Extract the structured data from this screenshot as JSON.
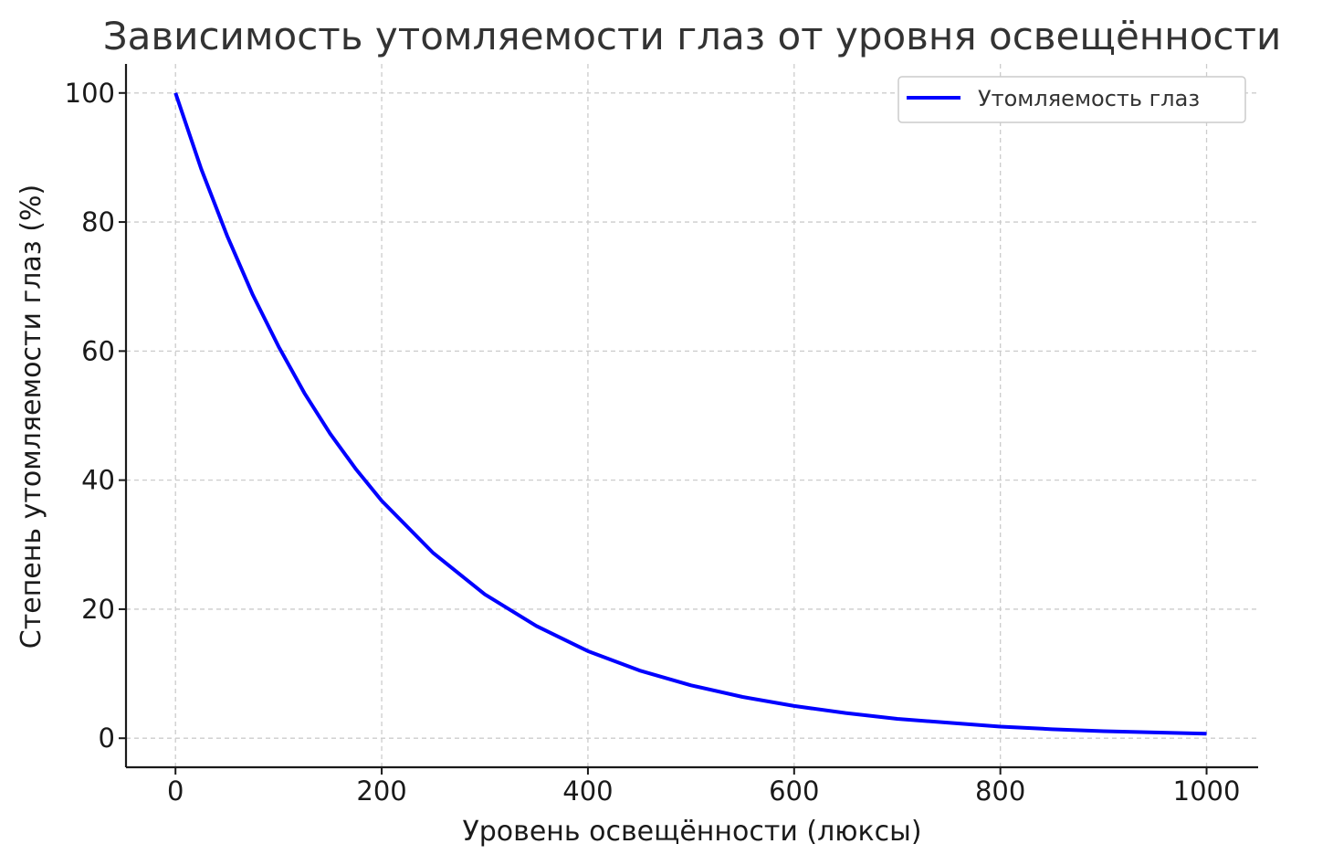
{
  "chart_data": {
    "type": "line",
    "title": "Зависимость утомляемости глаз от уровня освещённости",
    "xlabel": "Уровень освещённости (люксы)",
    "ylabel": "Степень утомляемости глаз (%)",
    "xlim": [
      -48,
      1050
    ],
    "ylim": [
      -4.5,
      104.5
    ],
    "xticks": [
      0,
      200,
      400,
      600,
      800,
      1000
    ],
    "yticks": [
      0,
      20,
      40,
      60,
      80,
      100
    ],
    "grid": true,
    "legend_position": "top-right",
    "series": [
      {
        "name": "Утомляемость глаз",
        "color": "#0000ff",
        "x": [
          0,
          25,
          50,
          75,
          100,
          125,
          150,
          175,
          200,
          250,
          300,
          350,
          400,
          450,
          500,
          550,
          600,
          650,
          700,
          750,
          800,
          850,
          900,
          950,
          1000
        ],
        "y": [
          100,
          88.2,
          77.9,
          68.7,
          60.7,
          53.5,
          47.2,
          41.7,
          36.8,
          28.7,
          22.3,
          17.4,
          13.5,
          10.5,
          8.2,
          6.4,
          5.0,
          3.9,
          3.0,
          2.4,
          1.8,
          1.4,
          1.1,
          0.9,
          0.7
        ]
      }
    ]
  }
}
